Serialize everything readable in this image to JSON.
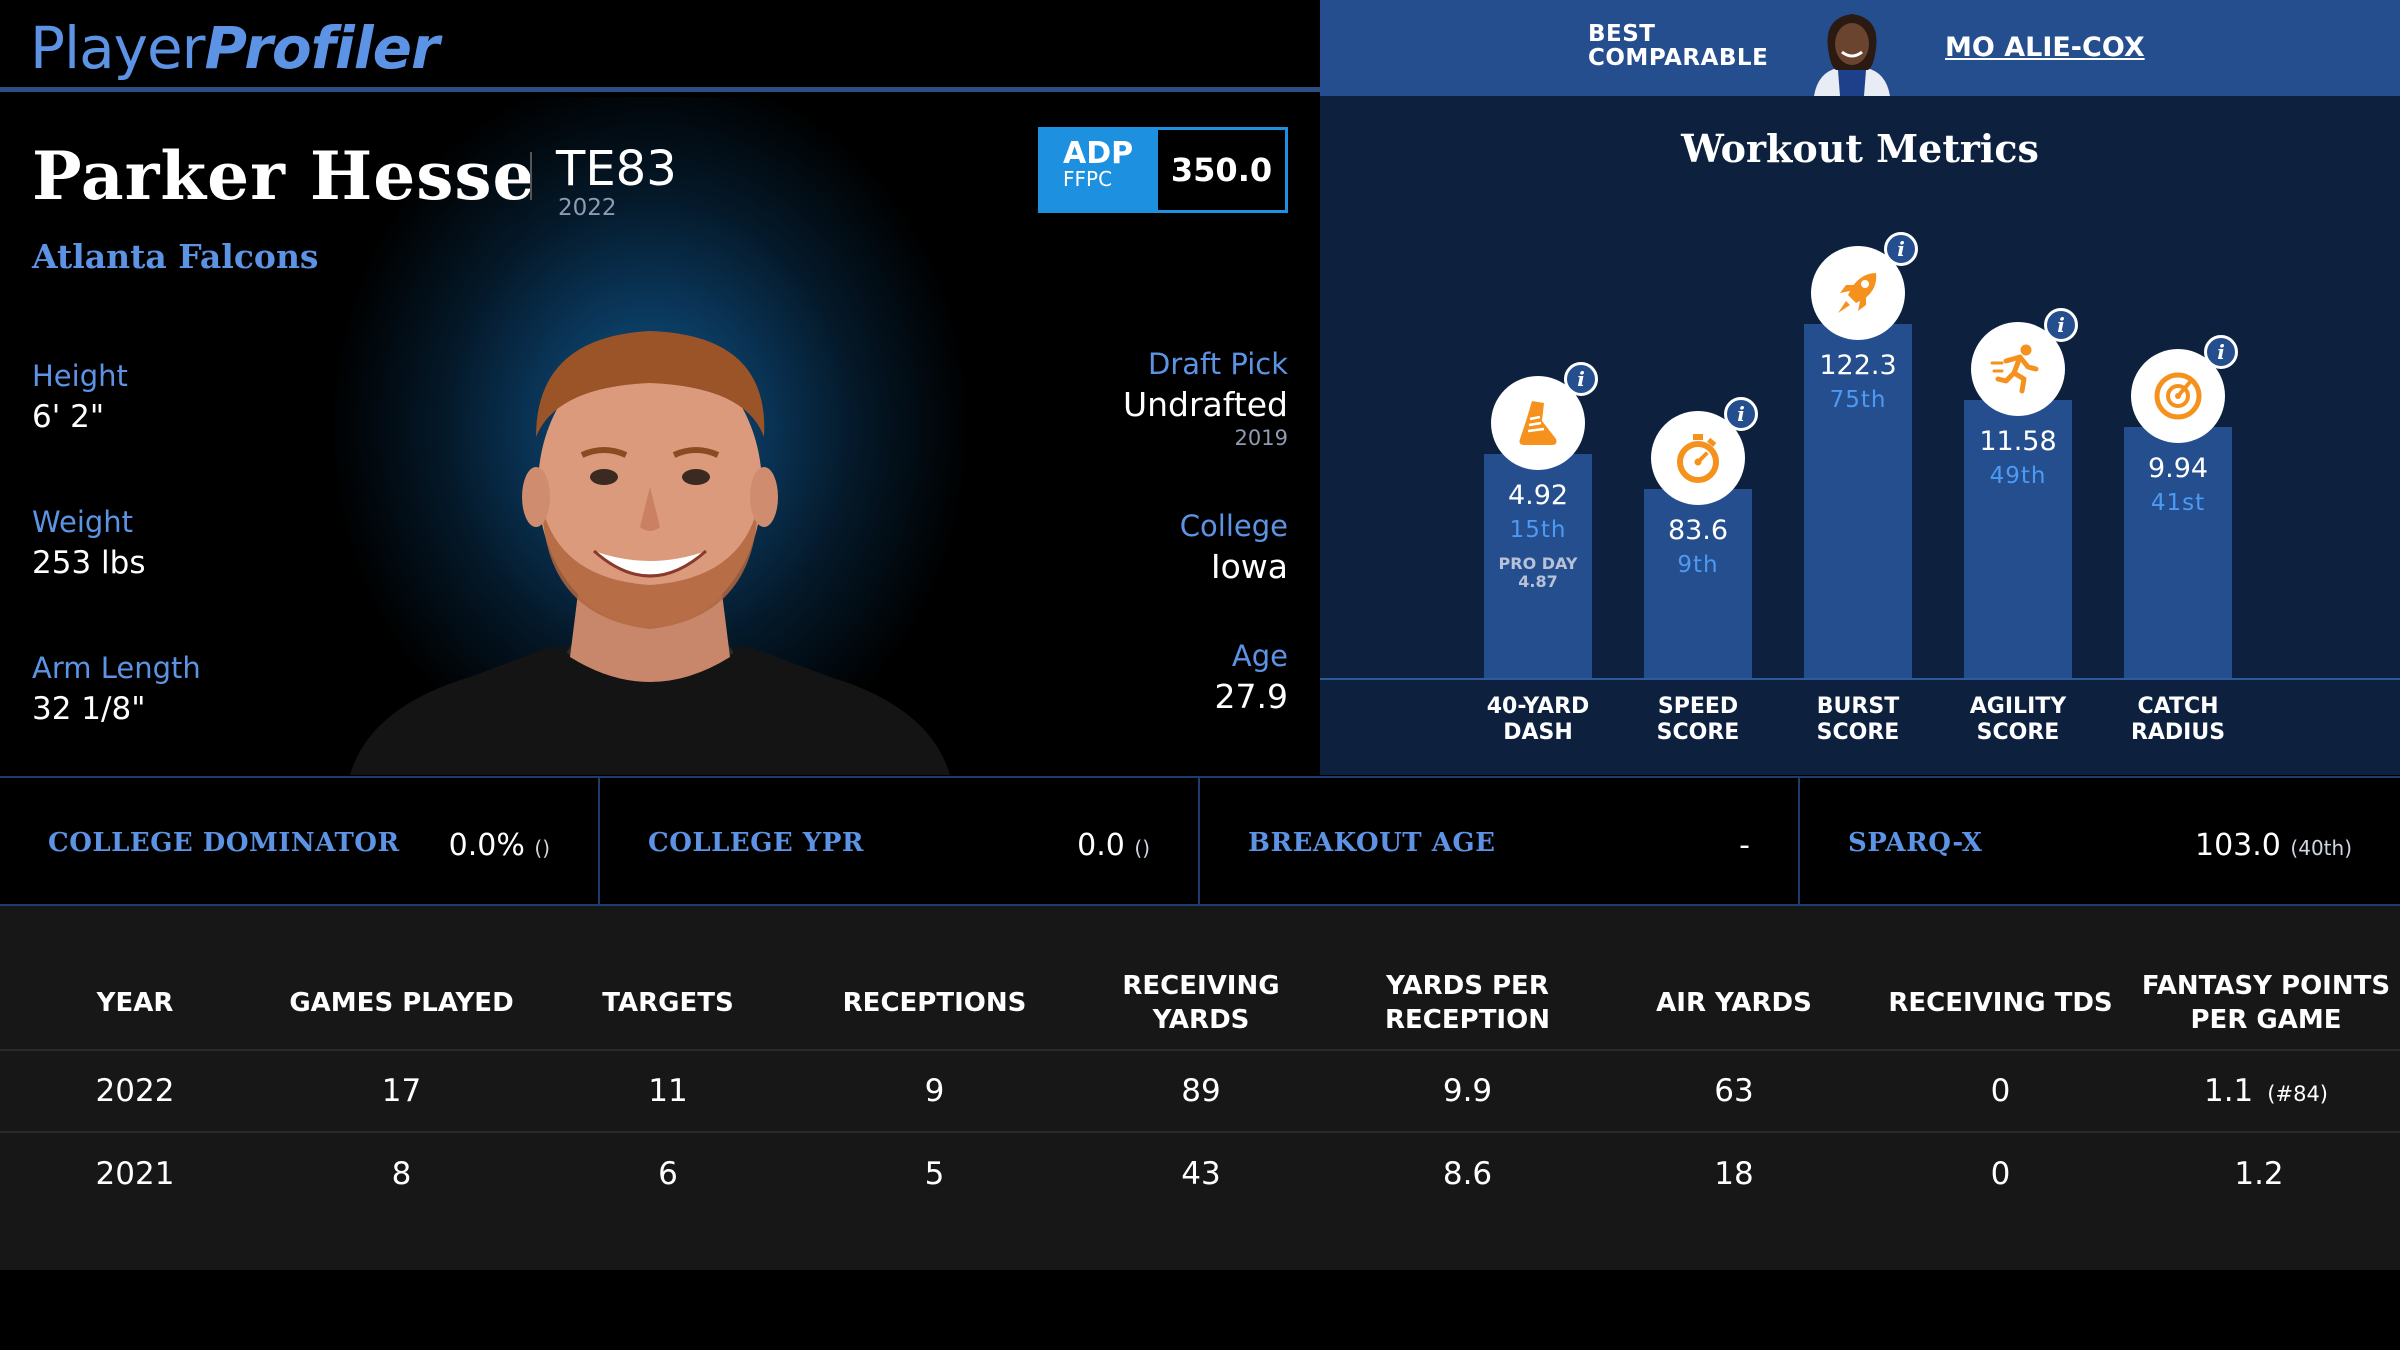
{
  "site": {
    "logo_part1": "Player",
    "logo_part2": "Profiler"
  },
  "comparable": {
    "label_line1": "BEST",
    "label_line2": "COMPARABLE",
    "name": "MO ALIE-COX"
  },
  "player": {
    "name": "Parker Hesse",
    "position_rank": "TE83",
    "season": "2022",
    "team": "Atlanta Falcons",
    "adp": {
      "label": "ADP",
      "source": "FFPC",
      "value": "350.0"
    },
    "height": {
      "label": "Height",
      "value": "6' 2\""
    },
    "weight": {
      "label": "Weight",
      "value": "253 lbs"
    },
    "arm_length": {
      "label": "Arm Length",
      "value": "32 1/8\""
    },
    "draft_pick": {
      "label": "Draft Pick",
      "value": "Undrafted",
      "year": "2019"
    },
    "college": {
      "label": "College",
      "value": "Iowa"
    },
    "age": {
      "label": "Age",
      "value": "27.9"
    }
  },
  "workout": {
    "title": "Workout Metrics",
    "metrics": [
      {
        "name_line1": "40-YARD",
        "name_line2": "DASH",
        "value": "4.92",
        "rank": "15th",
        "pro_day_label": "PRO DAY",
        "pro_day_value": "4.87",
        "icon": "shoe-icon",
        "level": 0.46
      },
      {
        "name_line1": "SPEED",
        "name_line2": "SCORE",
        "value": "83.6",
        "rank": "9th",
        "icon": "stopwatch-icon",
        "level": 0.33
      },
      {
        "name_line1": "BURST",
        "name_line2": "SCORE",
        "value": "122.3",
        "rank": "75th",
        "icon": "rocket-icon",
        "level": 0.94
      },
      {
        "name_line1": "AGILITY",
        "name_line2": "SCORE",
        "value": "11.58",
        "rank": "49th",
        "icon": "runner-icon",
        "level": 0.66
      },
      {
        "name_line1": "CATCH",
        "name_line2": "RADIUS",
        "value": "9.94",
        "rank": "41st",
        "icon": "target-icon",
        "level": 0.56
      }
    ]
  },
  "college_metrics": [
    {
      "label": "COLLEGE DOMINATOR",
      "value": "0.0%",
      "extra": "()"
    },
    {
      "label": "COLLEGE YPR",
      "value": "0.0",
      "extra": "()"
    },
    {
      "label": "BREAKOUT AGE",
      "value": "-",
      "extra": ""
    },
    {
      "label": "SPARQ-X",
      "value": "103.0",
      "extra": "(40th)"
    }
  ],
  "stats_table": {
    "columns": [
      "YEAR",
      "GAMES PLAYED",
      "TARGETS",
      "RECEPTIONS",
      "RECEIVING YARDS",
      "YARDS PER RECEPTION",
      "AIR YARDS",
      "RECEIVING TDS",
      "FANTASY POINTS PER GAME"
    ],
    "rows": [
      {
        "cells": [
          "2022",
          "17",
          "11",
          "9",
          "89",
          "9.9",
          "63",
          "0",
          "1.1"
        ],
        "fp_rank": "(#84)"
      },
      {
        "cells": [
          "2021",
          "8",
          "6",
          "5",
          "43",
          "8.6",
          "18",
          "0",
          "1.2"
        ],
        "fp_rank": ""
      }
    ]
  },
  "colors": {
    "accent_blue": "#5d93e4",
    "bar_blue": "#254e8f",
    "adp_blue": "#1e90e0",
    "icon_orange": "#f5921e"
  }
}
